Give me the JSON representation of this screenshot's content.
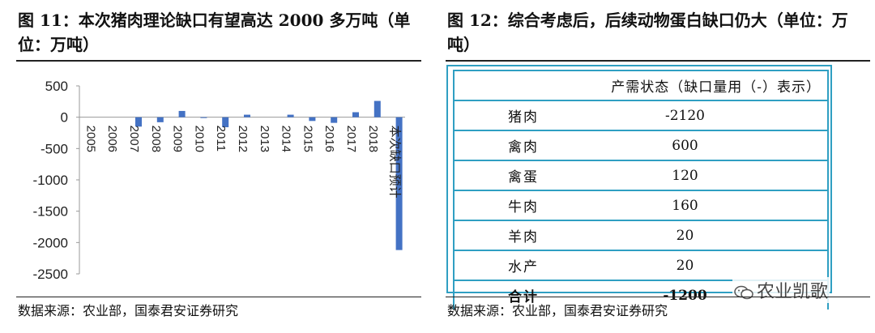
{
  "left_panel": {
    "title": "图 11：本次猪肉理论缺口有望高达 2000 多万吨（单位：万吨）",
    "source": "数据来源：农业部，国泰君安证券研究"
  },
  "right_panel": {
    "title": "图 12：综合考虑后，后续动物蛋白缺口仍大（单位：万吨）",
    "source": "数据来源：农业部，国泰君安证券研究",
    "table": {
      "header": "产需状态（缺口量用（-）表示）",
      "rows": [
        {
          "item": "猪肉",
          "value": "-2120"
        },
        {
          "item": "禽肉",
          "value": "600"
        },
        {
          "item": "禽蛋",
          "value": "120"
        },
        {
          "item": "牛肉",
          "value": "160"
        },
        {
          "item": "羊肉",
          "value": "20"
        },
        {
          "item": "水产",
          "value": "20"
        }
      ],
      "total": {
        "item": "合计",
        "value": "-1200"
      }
    },
    "watermark": "农业凯歌"
  },
  "chart_data": {
    "type": "bar",
    "categories": [
      "2005",
      "2006",
      "2007",
      "2008",
      "2009",
      "2010",
      "2011",
      "2012",
      "2013",
      "2014",
      "2015",
      "2016",
      "2017",
      "2018",
      "本次缺口预计"
    ],
    "values": [
      0,
      0,
      -150,
      -80,
      100,
      -10,
      -160,
      40,
      0,
      40,
      -60,
      -90,
      80,
      260,
      -2120
    ],
    "title": "",
    "xlabel": "",
    "ylabel": "",
    "ylim": [
      -2500,
      500
    ],
    "yticks": [
      500,
      0,
      -500,
      -1000,
      -1500,
      -2000,
      -2500
    ],
    "ytick_labels": [
      "500",
      "0",
      "-500",
      "-1000",
      "-1500",
      "-2000",
      "-2500"
    ],
    "color": "#4472c4",
    "grid": false,
    "legend": "none"
  }
}
